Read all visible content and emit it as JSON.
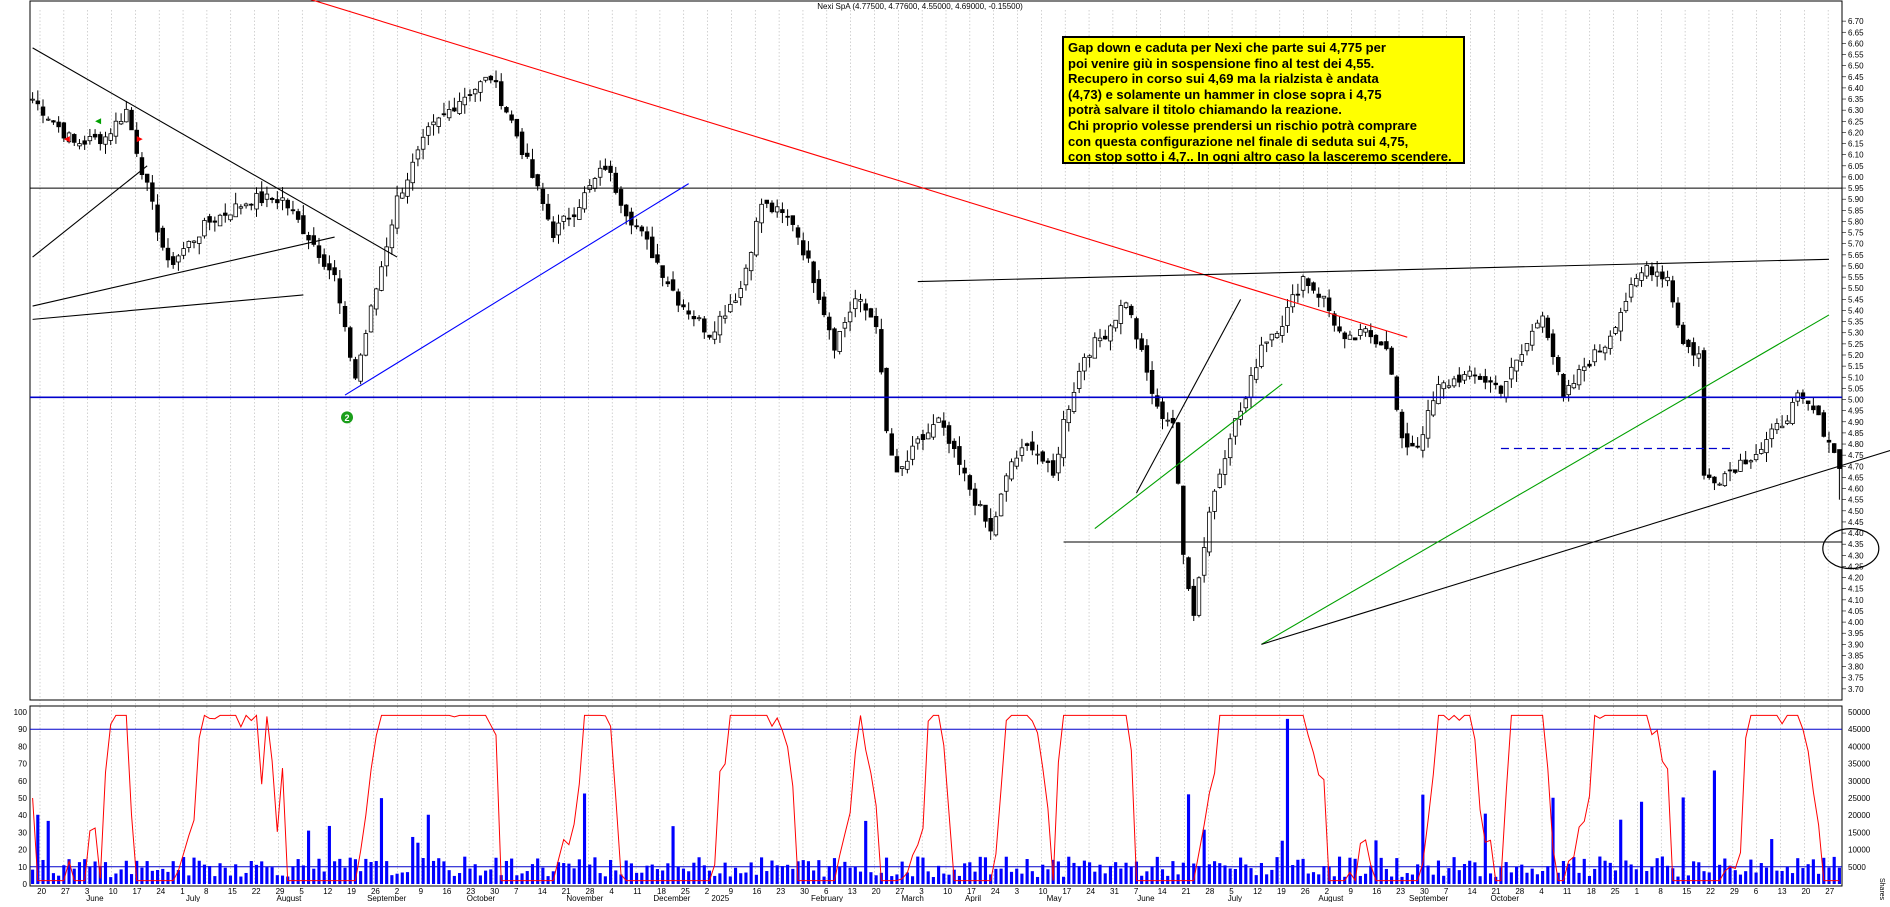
{
  "header": {
    "ticker": "Nexi SpA (4.77500, 4.77600, 4.55000, 4.69000, -0.15500)"
  },
  "annotation": {
    "lines": [
      "Gap down e caduta per Nexi che parte sui 4,775 per",
      "poi venire giù in sospensione fino al test dei 4,55.",
      "Recupero in corso sui 4,69 ma la rialzista è andata",
      "(4,73) e solamente un hammer in close sopra i 4,75",
      "potrà salvare il titolo chiamando la reazione.",
      "Chi proprio volesse prendersi un rischio potrà comprare",
      "con questa configurazione nel finale di seduta sui 4,75,",
      "con stop sotto i 4,7.. In ogni altro caso la lasceremo scendere."
    ]
  },
  "marker": {
    "label": "2",
    "color": "#1a9e1a"
  },
  "colors": {
    "candle": "#000000",
    "osc": "#ff0000",
    "volume": "#0000ff",
    "level": "#0000cc",
    "red_trend": "#ff0000",
    "green_trend": "#00a000",
    "blue_trend": "#0000ff",
    "grid": "#b4b4b4"
  },
  "chart_data": [
    {
      "type": "candlestick",
      "title": "Nexi SpA (4.77500, 4.77600, 4.55000, 4.69000, -0.15500)",
      "last_bar": {
        "open": 4.775,
        "high": 4.776,
        "low": 4.55,
        "close": 4.69,
        "change": -0.155
      },
      "ylim": [
        3.65,
        6.75
      ],
      "y_ticks": [
        "6.70",
        "6.65",
        "6.60",
        "6.55",
        "6.50",
        "6.45",
        "6.40",
        "6.35",
        "6.30",
        "6.25",
        "6.20",
        "6.15",
        "6.10",
        "6.05",
        "6.00",
        "5.95",
        "5.90",
        "5.85",
        "5.80",
        "5.75",
        "5.70",
        "5.65",
        "5.60",
        "5.55",
        "5.50",
        "5.45",
        "5.40",
        "5.35",
        "5.30",
        "5.25",
        "5.20",
        "5.15",
        "5.10",
        "5.05",
        "5.00",
        "4.95",
        "4.90",
        "4.85",
        "4.80",
        "4.75",
        "4.70",
        "4.65",
        "4.60",
        "4.55",
        "4.50",
        "4.45",
        "4.40",
        "4.35",
        "4.30",
        "4.25",
        "4.20",
        "4.15",
        "4.10",
        "4.05",
        "4.00",
        "3.95",
        "3.90",
        "3.85",
        "3.80",
        "3.75",
        "3.70"
      ],
      "price_path": [
        [
          0,
          6.35
        ],
        [
          8,
          6.15
        ],
        [
          14,
          6.18
        ],
        [
          18,
          6.3
        ],
        [
          22,
          5.95
        ],
        [
          26,
          5.6
        ],
        [
          34,
          5.8
        ],
        [
          42,
          5.9
        ],
        [
          48,
          5.9
        ],
        [
          54,
          5.7
        ],
        [
          58,
          5.55
        ],
        [
          60,
          5.3
        ],
        [
          62,
          5.1
        ],
        [
          66,
          5.5
        ],
        [
          70,
          5.9
        ],
        [
          76,
          6.2
        ],
        [
          82,
          6.35
        ],
        [
          88,
          6.45
        ],
        [
          92,
          6.25
        ],
        [
          96,
          6.0
        ],
        [
          100,
          5.75
        ],
        [
          104,
          5.85
        ],
        [
          110,
          6.05
        ],
        [
          114,
          5.85
        ],
        [
          118,
          5.7
        ],
        [
          124,
          5.45
        ],
        [
          130,
          5.3
        ],
        [
          136,
          5.5
        ],
        [
          140,
          5.88
        ],
        [
          146,
          5.8
        ],
        [
          150,
          5.55
        ],
        [
          154,
          5.25
        ],
        [
          158,
          5.45
        ],
        [
          162,
          5.35
        ],
        [
          164,
          4.85
        ],
        [
          166,
          4.65
        ],
        [
          170,
          4.8
        ],
        [
          174,
          4.9
        ],
        [
          178,
          4.7
        ],
        [
          182,
          4.5
        ],
        [
          184,
          4.4
        ],
        [
          188,
          4.72
        ],
        [
          192,
          4.8
        ],
        [
          196,
          4.65
        ],
        [
          198,
          4.9
        ],
        [
          202,
          5.2
        ],
        [
          206,
          5.3
        ],
        [
          210,
          5.45
        ],
        [
          213,
          5.2
        ],
        [
          216,
          4.95
        ],
        [
          219,
          4.9
        ],
        [
          221,
          4.3
        ],
        [
          223,
          4.05
        ],
        [
          226,
          4.5
        ],
        [
          230,
          4.85
        ],
        [
          233,
          5.0
        ],
        [
          236,
          5.25
        ],
        [
          240,
          5.35
        ],
        [
          244,
          5.55
        ],
        [
          248,
          5.45
        ],
        [
          252,
          5.25
        ],
        [
          256,
          5.3
        ],
        [
          260,
          5.25
        ],
        [
          263,
          4.8
        ],
        [
          266,
          4.8
        ],
        [
          270,
          5.05
        ],
        [
          274,
          5.1
        ],
        [
          278,
          5.1
        ],
        [
          282,
          5.05
        ],
        [
          286,
          5.2
        ],
        [
          290,
          5.4
        ],
        [
          294,
          5.0
        ],
        [
          298,
          5.15
        ],
        [
          302,
          5.25
        ],
        [
          306,
          5.45
        ],
        [
          310,
          5.6
        ],
        [
          314,
          5.55
        ],
        [
          317,
          5.25
        ],
        [
          320,
          5.2
        ],
        [
          321,
          4.65
        ],
        [
          324,
          4.65
        ],
        [
          328,
          4.72
        ],
        [
          332,
          4.78
        ],
        [
          336,
          4.9
        ],
        [
          339,
          5.0
        ],
        [
          342,
          4.95
        ],
        [
          345,
          4.82
        ],
        [
          347,
          4.69
        ]
      ],
      "levels": [
        {
          "name": "resistance-5.95",
          "y": 5.95
        },
        {
          "name": "support-5.01",
          "y": 5.01
        },
        {
          "name": "support-4.36",
          "y": 4.36
        },
        {
          "name": "dashed-4.78",
          "y": 4.78
        }
      ],
      "x_labels_top": [
        "20",
        "27",
        "3",
        "10",
        "17",
        "24",
        "1",
        "8",
        "15",
        "22",
        "29",
        "5",
        "12",
        "19",
        "26",
        "2",
        "9",
        "16",
        "23",
        "30",
        "7",
        "14",
        "21",
        "28",
        "4",
        "11",
        "18",
        "25",
        "2",
        "9",
        "16",
        "23",
        "30",
        "6",
        "13",
        "20",
        "27",
        "3",
        "10",
        "17",
        "24",
        "3",
        "10",
        "17",
        "24",
        "31",
        "7",
        "14",
        "21",
        "28",
        "5",
        "12",
        "19",
        "26",
        "2",
        "9",
        "16",
        "23",
        "30",
        "7",
        "14",
        "21",
        "28",
        "4",
        "11",
        "18",
        "25",
        "1",
        "8",
        "15",
        "22",
        "29",
        "6",
        "13",
        "20",
        "27"
      ],
      "x_labels_months": [
        "June",
        "July",
        "August",
        "September",
        "October",
        "November",
        "December",
        "2025",
        "February",
        "March",
        "April",
        "May",
        "June",
        "July",
        "August",
        "September",
        "October"
      ]
    },
    {
      "type": "line",
      "name": "oscillator",
      "ylim": [
        0,
        100
      ],
      "y_ticks": [
        "100",
        "90",
        "80",
        "70",
        "60",
        "50",
        "40",
        "30",
        "20",
        "10",
        "0"
      ],
      "reference_lines": [
        90,
        10
      ]
    },
    {
      "type": "bar",
      "name": "volume",
      "ylim": [
        0,
        50000
      ],
      "y_ticks": [
        "50000",
        "45000",
        "40000",
        "35000",
        "30000",
        "25000",
        "20000",
        "15000",
        "10000",
        "5000"
      ],
      "unit_label": "Shares"
    }
  ]
}
